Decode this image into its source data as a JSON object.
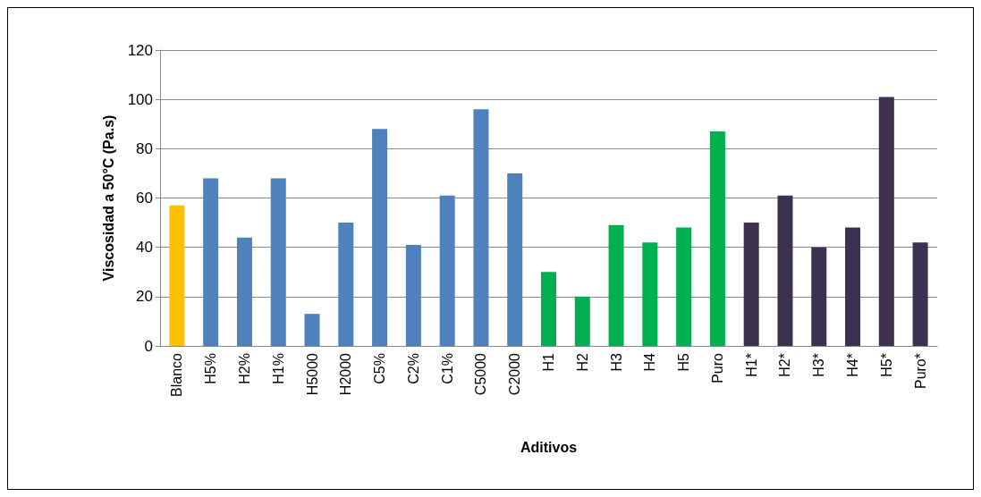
{
  "chart_data": {
    "type": "bar",
    "xlabel": "Aditivos",
    "ylabel": "Viscosidad a 50°C (Pa.s)",
    "categories": [
      "Blanco",
      "H5%",
      "H2%",
      "H1%",
      "H5000",
      "H2000",
      "C5%",
      "C2%",
      "C1%",
      "C5000",
      "C2000",
      "H1",
      "H2",
      "H3",
      "H4",
      "H5",
      "Puro",
      "H1*",
      "H2*",
      "H3*",
      "H4*",
      "H5*",
      "Puro*"
    ],
    "values": [
      57,
      68,
      44,
      68,
      13,
      50,
      88,
      41,
      61,
      96,
      70,
      30,
      20,
      49,
      42,
      48,
      87,
      50,
      61,
      40,
      48,
      101,
      42
    ],
    "colors": [
      "#ffc000",
      "#4f81bd",
      "#4f81bd",
      "#4f81bd",
      "#4f81bd",
      "#4f81bd",
      "#4f81bd",
      "#4f81bd",
      "#4f81bd",
      "#4f81bd",
      "#4f81bd",
      "#00b050",
      "#00b050",
      "#00b050",
      "#00b050",
      "#00b050",
      "#00b050",
      "#3c3151",
      "#3c3151",
      "#3c3151",
      "#3c3151",
      "#3c3151",
      "#3c3151"
    ],
    "ylim": [
      0,
      120
    ],
    "yticks": [
      0,
      20,
      40,
      60,
      80,
      100,
      120
    ],
    "grid": "y"
  }
}
